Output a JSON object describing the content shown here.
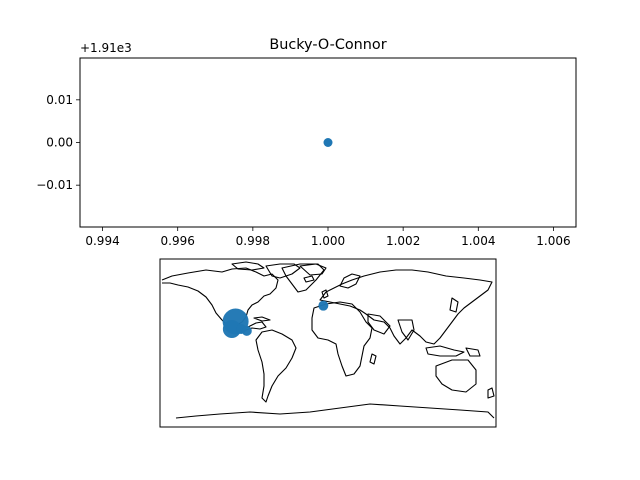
{
  "colors": {
    "marker": "#1f77b4",
    "axes": "#000000",
    "background": "#ffffff"
  },
  "chart_data": [
    {
      "type": "scatter",
      "title": "Bucky-O-Connor",
      "xlabel": "",
      "ylabel": "",
      "y_offset_label": "+1.91e3",
      "xlim": [
        0.9934,
        1.0066
      ],
      "ylim": [
        -0.0198,
        0.0198
      ],
      "xticks": [
        0.994,
        0.996,
        0.998,
        1.0,
        1.002,
        1.004,
        1.006
      ],
      "xtick_labels": [
        "0.994",
        "0.996",
        "0.998",
        "1.000",
        "1.002",
        "1.004",
        "1.006"
      ],
      "yticks": [
        0.01,
        0.0,
        -0.01
      ],
      "ytick_labels": [
        "0.01",
        "0.00",
        "−0.01"
      ],
      "grid": false,
      "series": [
        {
          "x": [
            1.0
          ],
          "y": [
            0.0
          ]
        }
      ]
    },
    {
      "type": "scatter",
      "title": "",
      "projection": "plate-carree world map with coastlines",
      "xlim": [
        -180,
        180
      ],
      "ylim": [
        -90,
        90
      ],
      "grid": false,
      "series": [
        {
          "points": [
            {
              "lon": -99,
              "lat": 23,
              "size": 3
            },
            {
              "lon": -103,
              "lat": 15,
              "size": 2
            },
            {
              "lon": -93,
              "lat": 15,
              "size": 1
            },
            {
              "lon": -87,
              "lat": 13,
              "size": 1
            },
            {
              "lon": -5,
              "lat": 40,
              "size": 1
            }
          ]
        }
      ]
    }
  ]
}
